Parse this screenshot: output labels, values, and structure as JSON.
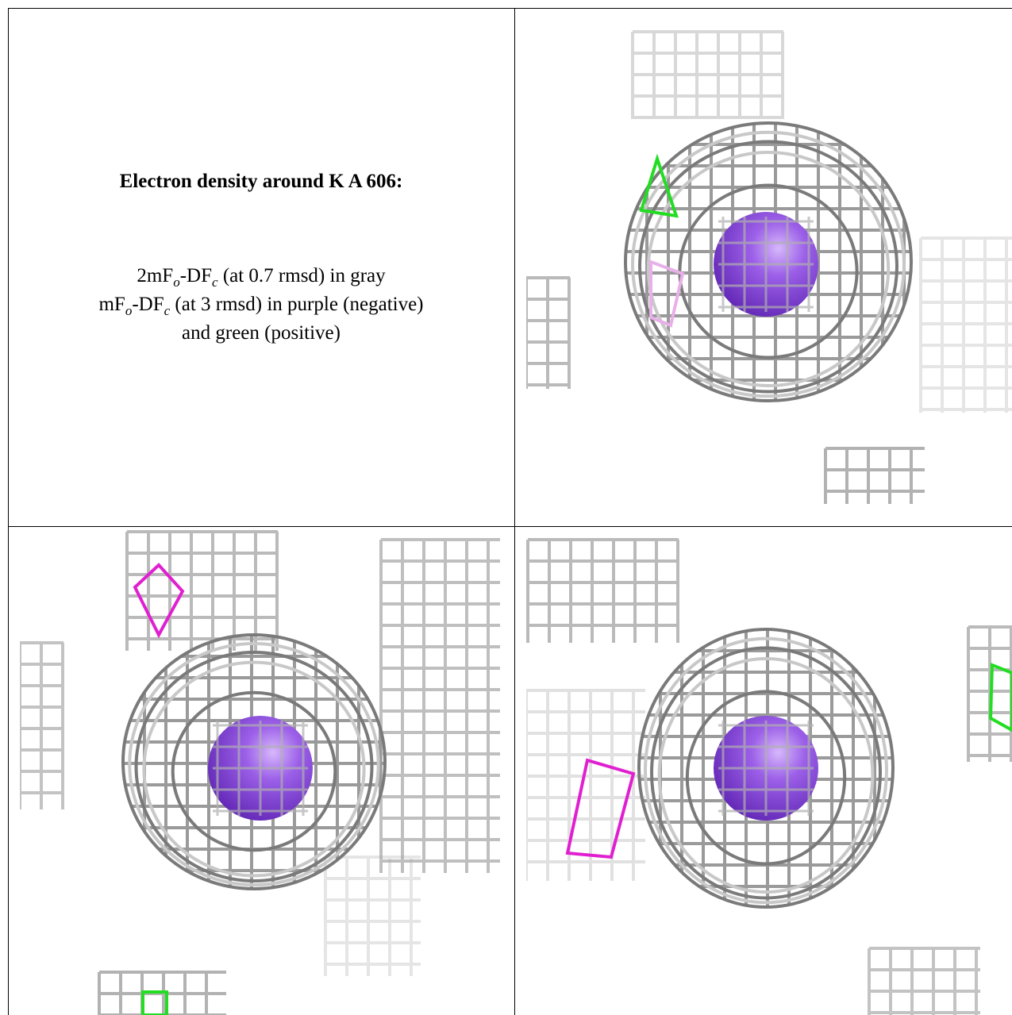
{
  "caption": {
    "title": "Electron density around K A 606:",
    "lines": [
      [
        {
          "text": "2mF"
        },
        {
          "text": "o",
          "sub": true
        },
        {
          "text": "-DF"
        },
        {
          "text": "c",
          "sub": true
        },
        {
          "text": " (at 0.7 rmsd) in gray"
        }
      ],
      [
        {
          "text": "mF"
        },
        {
          "text": "o",
          "sub": true
        },
        {
          "text": "-DF"
        },
        {
          "text": "c",
          "sub": true
        },
        {
          "text": " (at 3 rmsd) in purple (negative)"
        }
      ],
      [
        {
          "text": "and green (positive)"
        }
      ]
    ]
  }
}
